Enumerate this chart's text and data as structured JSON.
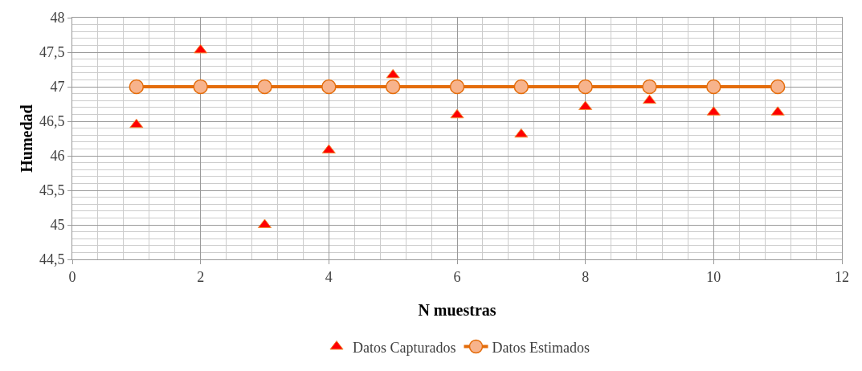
{
  "chart_data": {
    "type": "line",
    "xlabel": "N muestras",
    "ylabel": "Humedad",
    "x": [
      1,
      2,
      3,
      4,
      5,
      6,
      7,
      8,
      9,
      10,
      11
    ],
    "series": [
      {
        "name": "Datos Capturados",
        "type": "scatter",
        "marker": "triangle",
        "color": "#ff0000",
        "values": [
          46.45,
          47.53,
          45.0,
          46.08,
          47.17,
          46.59,
          46.31,
          46.71,
          46.8,
          46.63,
          46.63
        ]
      },
      {
        "name": "Datos Estimados",
        "type": "line",
        "marker": "circle",
        "color": "#e46c0a",
        "values": [
          47,
          47,
          47,
          47,
          47,
          47,
          47,
          47,
          47,
          47,
          47
        ]
      }
    ],
    "xlim": [
      0,
      12
    ],
    "xticks": [
      0,
      2,
      4,
      6,
      8,
      10,
      12
    ],
    "ylim": [
      44.5,
      48
    ],
    "yticks": [
      {
        "value": 44.5,
        "label": "44,5"
      },
      {
        "value": 45,
        "label": "45"
      },
      {
        "value": 45.5,
        "label": "45,5"
      },
      {
        "value": 46,
        "label": "46"
      },
      {
        "value": 46.5,
        "label": "46,5"
      },
      {
        "value": 47,
        "label": "47"
      },
      {
        "value": 47.5,
        "label": "47,5"
      },
      {
        "value": 48,
        "label": "48"
      }
    ],
    "grid": true,
    "legend": "bottom"
  }
}
